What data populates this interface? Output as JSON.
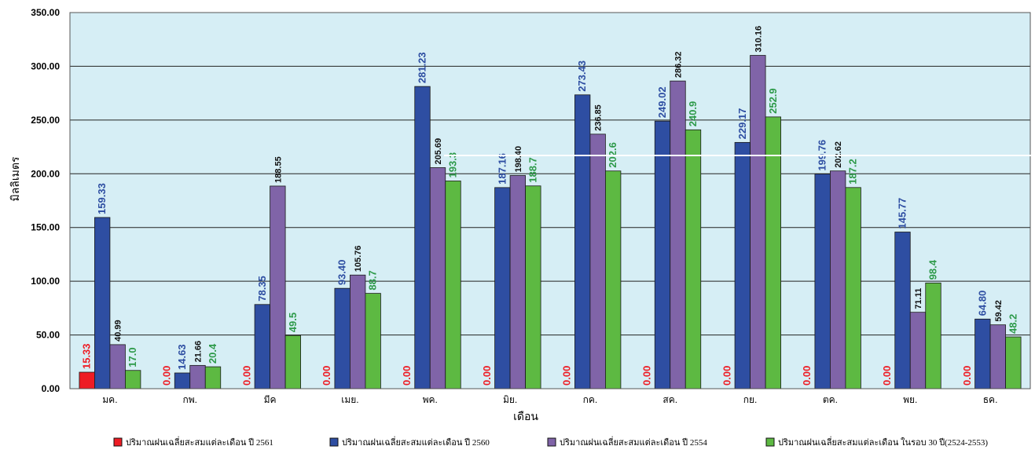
{
  "chart_data": {
    "type": "bar",
    "xlabel": "เดือน",
    "ylabel": "มิลลิเมตร",
    "ylim": [
      0,
      350
    ],
    "yticks": [
      "0.00",
      "50.00",
      "100.00",
      "150.00",
      "200.00",
      "250.00",
      "300.00",
      "350.00"
    ],
    "grid": true,
    "legend_position": "bottom",
    "plot_background": "#d6eef5",
    "categories": [
      "มค.",
      "กพ.",
      "มีค",
      "เมย.",
      "พค.",
      "มิย.",
      "กค.",
      "สค.",
      "กย.",
      "ตค.",
      "พย.",
      "ธค."
    ],
    "series": [
      {
        "name": "ปริมาณฝนเฉลี่ยสะสมแต่ละเดือน ปี 2561",
        "color": "#ee1c24",
        "label_color": "#ee1c24",
        "values": [
          15.33,
          0,
          0,
          0,
          0,
          0,
          0,
          0,
          0,
          0,
          0,
          0
        ],
        "labels": [
          "15.33",
          "0.00",
          "0.00",
          "0.00",
          "0.00",
          "0.00",
          "0.00",
          "0.00",
          "0.00",
          "0.00",
          "0.00",
          "0.00"
        ]
      },
      {
        "name": "ปริมาณฝนเฉลี่ยสะสมแต่ละเดือน ปี 2560",
        "color": "#2e4ea2",
        "label_color": "#2e4ea2",
        "values": [
          159.33,
          14.63,
          78.35,
          93.4,
          281.23,
          187.16,
          273.43,
          249.02,
          229.17,
          199.76,
          145.77,
          64.8
        ],
        "labels": [
          "159.33",
          "14.63",
          "78.35",
          "93.40",
          "281.23",
          "187.16",
          "273.43",
          "249.02",
          "229.17",
          "199.76",
          "145.77",
          "64.80"
        ]
      },
      {
        "name": "ปริมาณฝนเฉลี่ยสะสมแต่ละเดือน ปี 2554",
        "color": "#8064a8",
        "label_color": "#111111",
        "values": [
          40.99,
          21.66,
          188.55,
          105.76,
          205.69,
          198.4,
          236.85,
          286.32,
          310.16,
          202.62,
          71.11,
          59.42
        ],
        "labels": [
          "40.99",
          "21.66",
          "188.55",
          "105.76",
          "205.69",
          "198.40",
          "236.85",
          "286.32",
          "310.16",
          "202.62",
          "71.11",
          "59.42"
        ]
      },
      {
        "name": "ปริมาณฝนเฉลี่ยสะสมแต่ละเดือน ในรอบ 30 ปี(2524-2553)",
        "color": "#5db942",
        "label_color": "#2e9a4a",
        "values": [
          17.0,
          20.4,
          49.5,
          88.7,
          193.3,
          188.7,
          202.6,
          240.9,
          252.9,
          187.2,
          98.4,
          48.2
        ],
        "labels": [
          "17.0",
          "20.4",
          "49.5",
          "88.7",
          "193.3",
          "188.7",
          "202.6",
          "240.9",
          "252.9",
          "187.2",
          "98.4",
          "48.2"
        ]
      }
    ]
  }
}
